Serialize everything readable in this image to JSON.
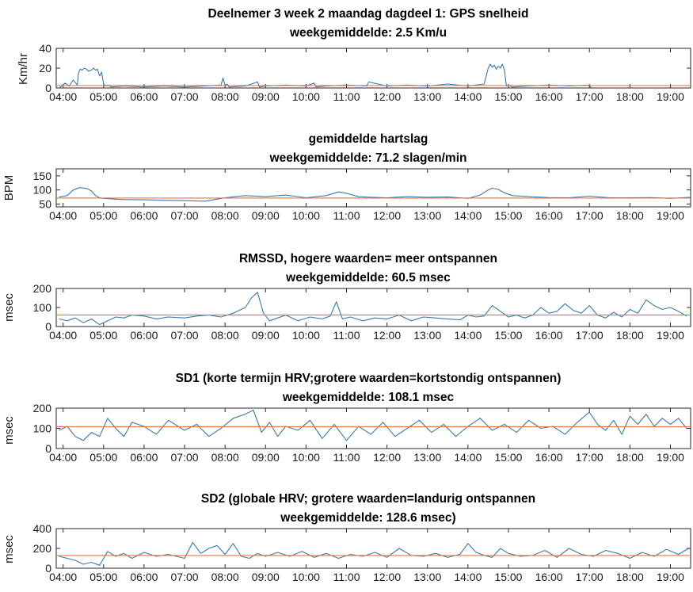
{
  "colors": {
    "series": "#3a78a8",
    "mean_line": "#e8733f",
    "axis": "#262626",
    "background": "#ffffff"
  },
  "x_tick_labels": [
    "04:00",
    "05:00",
    "06:00",
    "07:00",
    "08:00",
    "09:00",
    "10:00",
    "11:00",
    "12:00",
    "13:00",
    "14:00",
    "15:00",
    "16:00",
    "17:00",
    "18:00",
    "19:00"
  ],
  "chart_data": [
    {
      "type": "line",
      "title": "Deelnemer 3 week 2 maandag dagdeel 1:  GPS snelheid",
      "subtitle": "weekgemiddelde: 2.5 Km/u",
      "ylabel": "Km/hr",
      "xlim": [
        3.83,
        19.5
      ],
      "ylim": [
        0,
        40
      ],
      "yticks": [
        0,
        20,
        40
      ],
      "y_tick_labels": [
        "0",
        "20",
        "40"
      ],
      "mean": 2.5,
      "series": [
        {
          "x": [
            3.9,
            4.05,
            4.15,
            4.25,
            4.35,
            4.38,
            4.42,
            4.47,
            4.52,
            4.58,
            4.63,
            4.7,
            4.75,
            4.8,
            4.85,
            4.9,
            4.95,
            5.0,
            5.05,
            5.1,
            5.2,
            5.5,
            6.0,
            6.5,
            7.0,
            7.5,
            7.9,
            7.95,
            8.0,
            8.05,
            8.1,
            8.5,
            8.8,
            8.85,
            9.0,
            9.5,
            10.0,
            10.2,
            10.25,
            10.5,
            11.0,
            11.5,
            11.55,
            12.0,
            12.5,
            13.0,
            13.5,
            14.0,
            14.4,
            14.45,
            14.5,
            14.55,
            14.6,
            14.65,
            14.7,
            14.75,
            14.8,
            14.85,
            14.9,
            14.95,
            15.0,
            15.1,
            15.5,
            16.0,
            16.5,
            17.0,
            17.05
          ],
          "y": [
            0,
            5,
            2,
            8,
            3,
            15,
            19,
            18,
            20,
            19,
            17,
            18,
            20,
            18,
            19,
            12,
            16,
            4,
            2,
            3,
            1,
            2,
            1,
            2,
            1,
            2,
            3,
            10,
            2,
            4,
            1,
            2,
            6,
            1,
            2,
            3,
            2,
            5,
            1,
            2,
            3,
            2,
            6,
            2,
            3,
            2,
            4,
            2,
            4,
            12,
            20,
            24,
            21,
            23,
            19,
            22,
            20,
            24,
            18,
            2,
            3,
            1,
            2,
            3,
            2,
            3,
            0
          ]
        }
      ]
    },
    {
      "type": "line",
      "title": "gemiddelde hartslag",
      "subtitle": "weekgemiddelde: 71.2 slagen/min",
      "ylabel": "BPM",
      "xlim": [
        3.83,
        19.5
      ],
      "ylim": [
        40,
        175
      ],
      "yticks": [
        50,
        100,
        150
      ],
      "y_tick_labels": [
        "50",
        "100",
        "150"
      ],
      "mean": 71.2,
      "series": [
        {
          "x": [
            3.9,
            4.1,
            4.25,
            4.4,
            4.5,
            4.6,
            4.7,
            4.8,
            4.9,
            5.0,
            5.2,
            5.5,
            6.0,
            6.5,
            7.0,
            7.5,
            8.0,
            8.5,
            9.0,
            9.5,
            10.0,
            10.5,
            10.8,
            11.0,
            11.3,
            11.6,
            12.0,
            12.5,
            13.0,
            13.5,
            14.0,
            14.3,
            14.5,
            14.6,
            14.75,
            14.9,
            15.1,
            15.5,
            16.0,
            16.5,
            17.0,
            17.5,
            18.0,
            18.5,
            19.0,
            19.5
          ],
          "y": [
            75,
            80,
            100,
            108,
            107,
            104,
            96,
            80,
            72,
            70,
            68,
            66,
            65,
            63,
            62,
            60,
            72,
            80,
            76,
            82,
            72,
            80,
            93,
            88,
            76,
            74,
            72,
            76,
            74,
            75,
            70,
            82,
            100,
            106,
            102,
            90,
            80,
            76,
            73,
            72,
            78,
            72,
            72,
            73,
            70,
            74
          ]
        }
      ]
    },
    {
      "type": "line",
      "title": "RMSSD, hogere waarden= meer ontspannen",
      "subtitle": "weekgemiddelde: 60.5 msec",
      "ylabel": "msec",
      "xlim": [
        3.83,
        19.5
      ],
      "ylim": [
        0,
        200
      ],
      "yticks": [
        0,
        100,
        200
      ],
      "y_tick_labels": [
        "0",
        "100",
        "200"
      ],
      "mean": 60.5,
      "series": [
        {
          "x": [
            3.9,
            4.1,
            4.3,
            4.5,
            4.7,
            4.9,
            5.1,
            5.3,
            5.5,
            5.7,
            6.0,
            6.3,
            6.6,
            7.0,
            7.3,
            7.6,
            7.9,
            8.2,
            8.5,
            8.65,
            8.8,
            8.95,
            9.1,
            9.3,
            9.5,
            9.8,
            10.1,
            10.4,
            10.6,
            10.75,
            10.9,
            11.1,
            11.4,
            11.7,
            12.0,
            12.3,
            12.6,
            12.9,
            13.2,
            13.5,
            13.8,
            14.0,
            14.2,
            14.4,
            14.6,
            14.8,
            15.0,
            15.2,
            15.4,
            15.6,
            15.8,
            16.0,
            16.2,
            16.4,
            16.6,
            16.8,
            17.0,
            17.2,
            17.4,
            17.6,
            17.8,
            18.0,
            18.2,
            18.4,
            18.6,
            18.8,
            19.0,
            19.2,
            19.4
          ],
          "y": [
            40,
            30,
            45,
            20,
            40,
            10,
            30,
            50,
            45,
            60,
            55,
            40,
            50,
            45,
            55,
            60,
            50,
            70,
            100,
            150,
            180,
            70,
            30,
            45,
            60,
            30,
            50,
            40,
            55,
            130,
            40,
            50,
            30,
            45,
            40,
            60,
            30,
            50,
            45,
            40,
            35,
            60,
            50,
            55,
            110,
            80,
            50,
            60,
            45,
            60,
            100,
            70,
            80,
            120,
            85,
            70,
            110,
            60,
            45,
            75,
            50,
            90,
            70,
            140,
            110,
            90,
            100,
            80,
            55
          ]
        }
      ]
    },
    {
      "type": "line",
      "title": "SD1 (korte termijn HRV;grotere waarden=kortstondig ontspannen)",
      "subtitle": "weekgemiddelde: 108.1 msec",
      "ylabel": "msec",
      "xlim": [
        3.83,
        19.5
      ],
      "ylim": [
        0,
        200
      ],
      "yticks": [
        0,
        100,
        200
      ],
      "y_tick_labels": [
        "0",
        "100",
        "200"
      ],
      "mean": 108.1,
      "series": [
        {
          "x": [
            3.9,
            4.1,
            4.3,
            4.5,
            4.7,
            4.9,
            5.1,
            5.3,
            5.5,
            5.7,
            6.0,
            6.3,
            6.6,
            7.0,
            7.3,
            7.6,
            7.9,
            8.2,
            8.5,
            8.7,
            8.9,
            9.1,
            9.3,
            9.5,
            9.8,
            10.1,
            10.4,
            10.7,
            11.0,
            11.3,
            11.6,
            11.9,
            12.2,
            12.5,
            12.8,
            13.1,
            13.4,
            13.7,
            14.0,
            14.3,
            14.6,
            14.9,
            15.2,
            15.5,
            15.8,
            16.1,
            16.4,
            16.7,
            17.0,
            17.2,
            17.4,
            17.6,
            17.8,
            18.0,
            18.2,
            18.4,
            18.6,
            18.8,
            19.0,
            19.2,
            19.4
          ],
          "y": [
            90,
            110,
            60,
            40,
            80,
            60,
            150,
            100,
            60,
            130,
            110,
            70,
            140,
            90,
            120,
            60,
            100,
            150,
            170,
            190,
            80,
            130,
            60,
            110,
            90,
            140,
            50,
            120,
            40,
            110,
            70,
            130,
            60,
            100,
            140,
            80,
            120,
            60,
            110,
            150,
            90,
            120,
            80,
            140,
            100,
            110,
            70,
            130,
            180,
            120,
            90,
            140,
            70,
            160,
            120,
            170,
            110,
            150,
            120,
            150,
            100
          ]
        }
      ]
    },
    {
      "type": "line",
      "title": "SD2 (globale HRV; grotere waarden=landurig ontspannen",
      "subtitle": "weekgemiddelde: 128.6 msec)",
      "ylabel": "msec",
      "xlim": [
        3.83,
        19.5
      ],
      "ylim": [
        0,
        400
      ],
      "yticks": [
        0,
        200,
        400
      ],
      "y_tick_labels": [
        "0",
        "200",
        "400"
      ],
      "mean": 128.6,
      "series": [
        {
          "x": [
            3.9,
            4.1,
            4.3,
            4.5,
            4.7,
            4.9,
            5.1,
            5.3,
            5.5,
            5.7,
            6.0,
            6.3,
            6.6,
            7.0,
            7.2,
            7.4,
            7.6,
            7.8,
            8.0,
            8.2,
            8.4,
            8.6,
            8.8,
            9.0,
            9.3,
            9.6,
            9.9,
            10.2,
            10.5,
            10.8,
            11.1,
            11.4,
            11.7,
            12.0,
            12.3,
            12.6,
            12.9,
            13.2,
            13.5,
            13.8,
            14.0,
            14.2,
            14.4,
            14.6,
            14.8,
            15.0,
            15.3,
            15.6,
            15.9,
            16.2,
            16.5,
            16.8,
            17.1,
            17.4,
            17.7,
            18.0,
            18.3,
            18.6,
            18.9,
            19.2,
            19.45
          ],
          "y": [
            120,
            100,
            80,
            40,
            60,
            30,
            170,
            120,
            150,
            100,
            160,
            120,
            140,
            100,
            260,
            150,
            200,
            230,
            140,
            250,
            120,
            100,
            150,
            120,
            160,
            120,
            170,
            110,
            150,
            100,
            140,
            120,
            160,
            110,
            200,
            130,
            120,
            150,
            110,
            140,
            250,
            160,
            130,
            110,
            200,
            150,
            120,
            130,
            180,
            110,
            200,
            140,
            120,
            180,
            150,
            100,
            160,
            120,
            190,
            140,
            200
          ]
        }
      ]
    }
  ]
}
